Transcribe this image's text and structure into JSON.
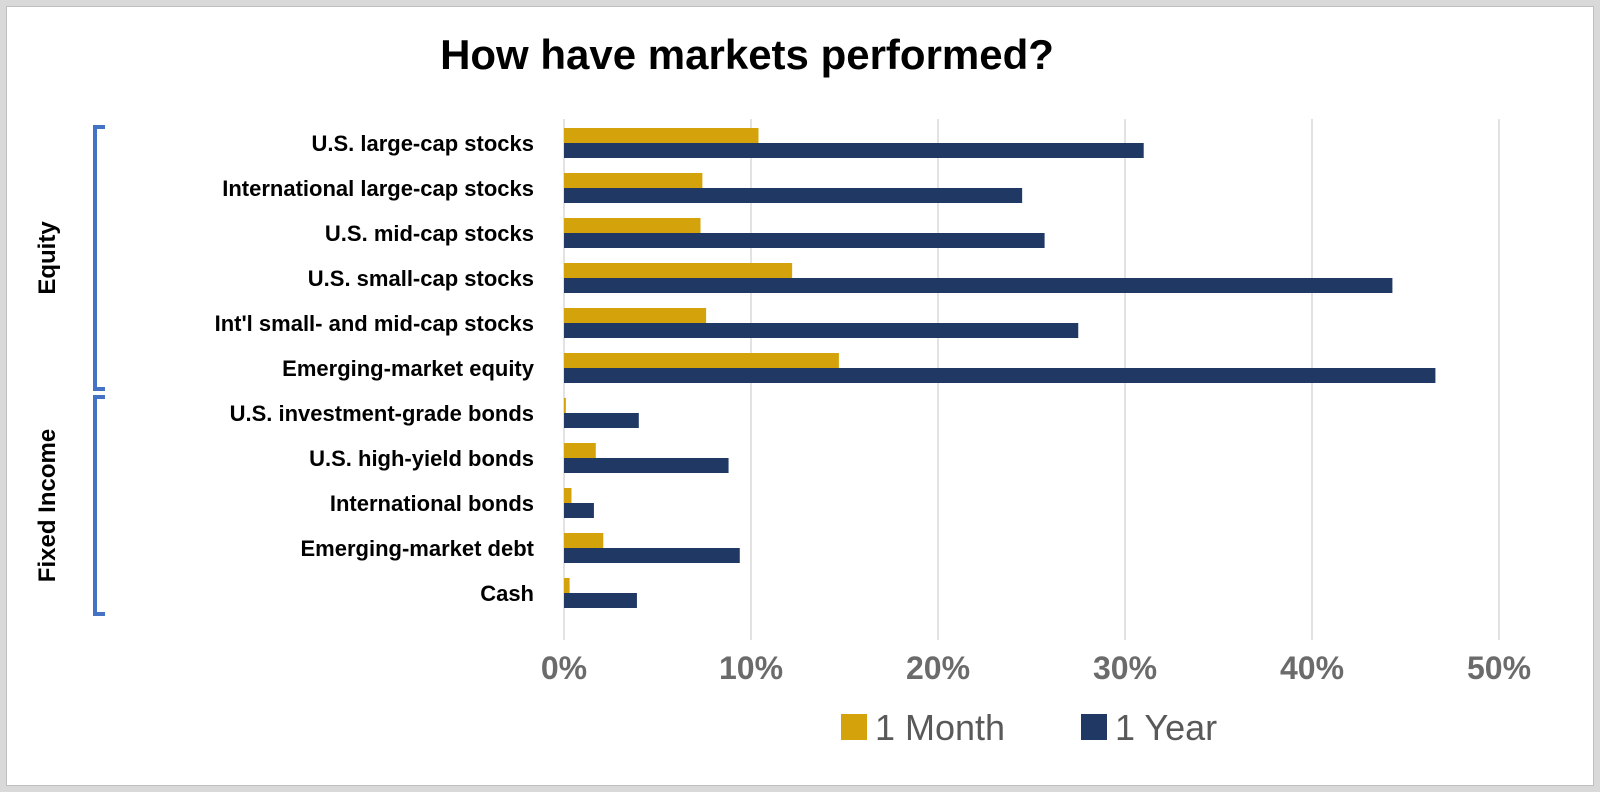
{
  "chart_data": {
    "type": "bar",
    "orientation": "horizontal",
    "title": "How have markets performed?",
    "categories": [
      "U.S. large-cap stocks",
      "International large-cap stocks",
      "U.S. mid-cap stocks",
      "U.S. small-cap stocks",
      "Int'l small- and mid-cap stocks",
      "Emerging-market equity",
      "U.S. investment-grade bonds",
      "U.S. high-yield bonds",
      "International bonds",
      "Emerging-market debt",
      "Cash"
    ],
    "groups": [
      {
        "label": "Equity",
        "start": 0,
        "end": 5
      },
      {
        "label": "Fixed Income",
        "start": 6,
        "end": 10
      }
    ],
    "series": [
      {
        "name": "1 Month",
        "color": "#d4a20a",
        "values": [
          10.4,
          7.4,
          7.3,
          12.2,
          7.6,
          14.7,
          0.1,
          1.7,
          0.4,
          2.1,
          0.3
        ]
      },
      {
        "name": "1 Year",
        "color": "#1f3864",
        "values": [
          31.0,
          24.5,
          25.7,
          44.3,
          27.5,
          46.6,
          4.0,
          8.8,
          1.6,
          9.4,
          3.9
        ]
      }
    ],
    "xlim": [
      0,
      50
    ],
    "x_ticks": [
      "0%",
      "10%",
      "20%",
      "30%",
      "40%",
      "50%"
    ],
    "tick_values": [
      0,
      10,
      20,
      30,
      40,
      50
    ],
    "grid": true,
    "legend_position": "bottom"
  }
}
